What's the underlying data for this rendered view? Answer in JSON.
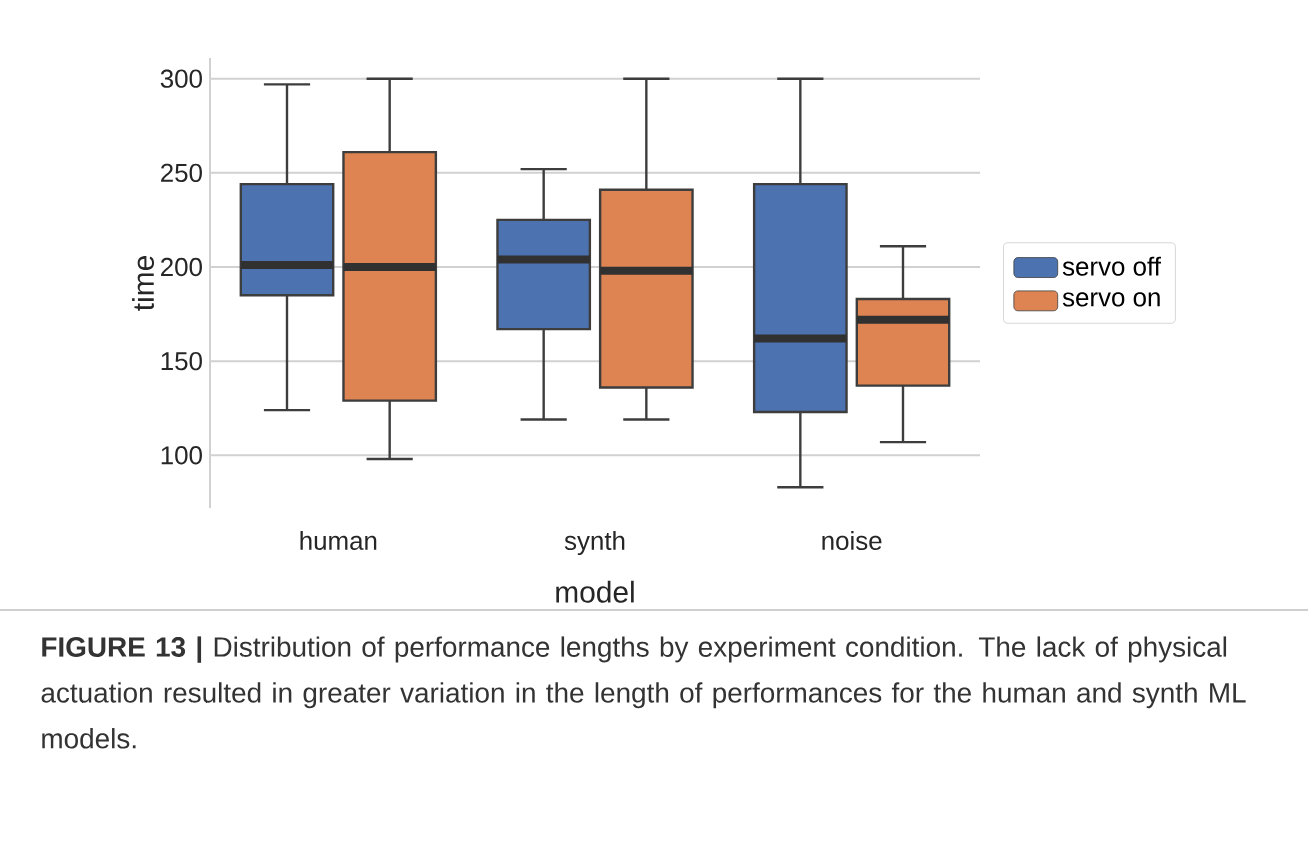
{
  "chart_data": {
    "type": "box",
    "categories": [
      "human",
      "synth",
      "noise"
    ],
    "xlabel": "model",
    "ylabel": "time",
    "series": [
      {
        "name": "servo off",
        "color": "#4c72b0",
        "boxes": [
          {
            "low": 124,
            "q1": 185,
            "median": 201,
            "q3": 244,
            "high": 297
          },
          {
            "low": 119,
            "q1": 167,
            "median": 204,
            "q3": 225,
            "high": 252
          },
          {
            "low": 83,
            "q1": 123,
            "median": 162,
            "q3": 244,
            "high": 300
          }
        ]
      },
      {
        "name": "servo on",
        "color": "#dd8452",
        "boxes": [
          {
            "low": 98,
            "q1": 129,
            "median": 200,
            "q3": 261,
            "high": 300
          },
          {
            "low": 119,
            "q1": 136,
            "median": 198,
            "q3": 241,
            "high": 300
          },
          {
            "low": 107,
            "q1": 137,
            "median": 172,
            "q3": 183,
            "high": 211
          }
        ]
      }
    ],
    "ylim": [
      72,
      311
    ],
    "yticks": [
      100,
      150,
      200,
      250,
      300
    ],
    "grid": "y",
    "legend": "right",
    "annotations": [
      "**FIGURE 13 |** Distribution of performance lengths by experiment condition. The lack of physical actuation resulted in greater variation in the length of performances for the human and synth ML models."
    ]
  }
}
